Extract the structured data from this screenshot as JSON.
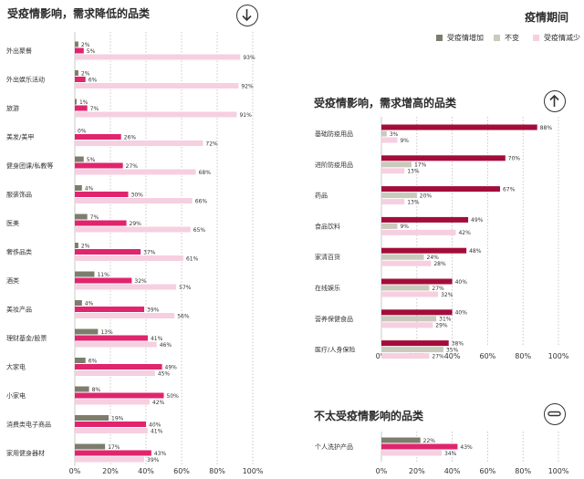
{
  "panels": {
    "decrease": {
      "title": "受疫情影响，需求降低的品类"
    },
    "increase": {
      "title": "受疫情影响，需求增高的品类"
    },
    "unaffected": {
      "title": "不太受疫情影响的品类"
    }
  },
  "legend": {
    "title": "疫情期间",
    "items": [
      {
        "label": "受疫情增加",
        "color": "#7d7d6d"
      },
      {
        "label": "不变",
        "color": "#c9c9bc"
      },
      {
        "label": "受疫情减少",
        "color": "#f6cfe0"
      }
    ]
  },
  "colors": {
    "decrease_highlight": "#e0246d",
    "increase_highlight": "#a30d3a",
    "grid": "#bbbbbb"
  },
  "chart_data": [
    {
      "type": "bar",
      "orientation": "horizontal",
      "title": "受疫情影响，需求降低的品类",
      "xlim": [
        0,
        100
      ],
      "ticks": [
        "0%",
        "20%",
        "40%",
        "60%",
        "80%",
        "100%"
      ],
      "categories": [
        "外出聚餐",
        "外出娱乐活动",
        "旅游",
        "美发/美甲",
        "健身团课/私教等",
        "服装饰品",
        "医美",
        "奢侈品类",
        "酒类",
        "美妆产品",
        "理财基金/股票",
        "大家电",
        "小家电",
        "消费类电子商品",
        "家用健身器材"
      ],
      "series": [
        {
          "name": "受疫情增加",
          "values": [
            2,
            2,
            1,
            0,
            5,
            4,
            7,
            2,
            11,
            4,
            13,
            6,
            8,
            19,
            17
          ]
        },
        {
          "name": "不变",
          "values": [
            5,
            6,
            7,
            26,
            27,
            30,
            29,
            37,
            32,
            39,
            41,
            49,
            50,
            40,
            43
          ]
        },
        {
          "name": "受疫情减少",
          "values": [
            93,
            92,
            91,
            72,
            68,
            66,
            65,
            61,
            57,
            56,
            46,
            45,
            42,
            41,
            39
          ]
        }
      ],
      "highlight_series": "不变"
    },
    {
      "type": "bar",
      "orientation": "horizontal",
      "title": "受疫情影响，需求增高的品类",
      "xlim": [
        0,
        100
      ],
      "ticks": [
        "0%",
        "20%",
        "40%",
        "60%",
        "80%",
        "100%"
      ],
      "categories": [
        "基础防疫用品",
        "进阶防疫用品",
        "药品",
        "食品饮料",
        "家清百货",
        "在线娱乐",
        "营养保健食品",
        "医疗/人身保险"
      ],
      "series": [
        {
          "name": "受疫情增加",
          "values": [
            88,
            70,
            67,
            49,
            48,
            40,
            40,
            38
          ]
        },
        {
          "name": "不变",
          "values": [
            3,
            17,
            20,
            9,
            24,
            27,
            31,
            35
          ]
        },
        {
          "name": "受疫情减少",
          "values": [
            9,
            13,
            13,
            42,
            28,
            32,
            29,
            27
          ]
        }
      ],
      "highlight_series": "受疫情增加"
    },
    {
      "type": "bar",
      "orientation": "horizontal",
      "title": "不太受疫情影响的品类",
      "xlim": [
        0,
        100
      ],
      "ticks": [
        "0%",
        "20%",
        "40%",
        "60%",
        "80%",
        "100%"
      ],
      "categories": [
        "个人洗护产品"
      ],
      "series": [
        {
          "name": "受疫情增加",
          "values": [
            22
          ]
        },
        {
          "name": "不变",
          "values": [
            43
          ]
        },
        {
          "name": "受疫情减少",
          "values": [
            34
          ]
        }
      ],
      "highlight_series": "不变"
    }
  ]
}
